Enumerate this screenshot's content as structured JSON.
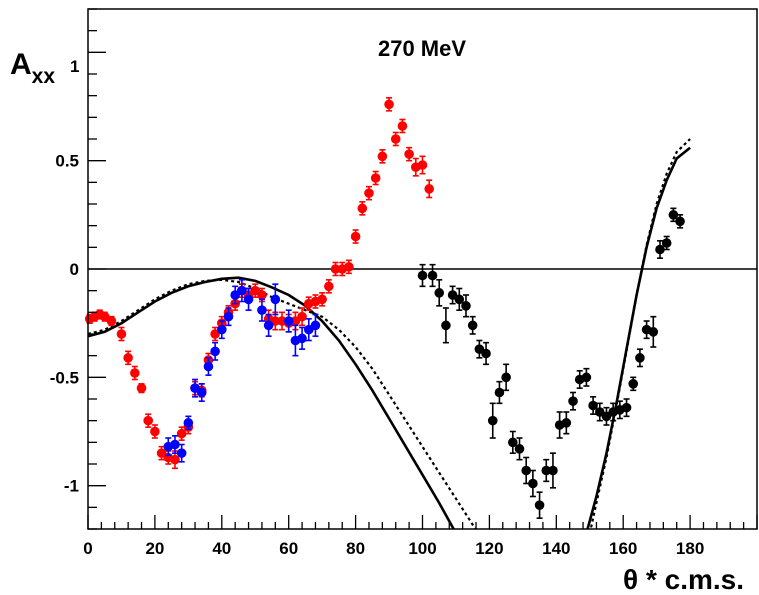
{
  "chart_data": {
    "type": "scatter",
    "title": "270 MeV",
    "xlabel": "θ * c.m.s.",
    "ylabel_main": "A",
    "ylabel_sub": "xx",
    "xlim": [
      0,
      200
    ],
    "ylim": [
      -1.2,
      1.2
    ],
    "x_ticks": [
      0,
      20,
      40,
      60,
      80,
      100,
      120,
      140,
      160,
      180
    ],
    "y_ticks": [
      -1,
      -0.5,
      0,
      0.5,
      1
    ],
    "x_tick_labels": [
      "0",
      "20",
      "40",
      "60",
      "80",
      "100",
      "120",
      "140",
      "160",
      "180"
    ],
    "y_tick_labels": [
      "-1",
      "-0.5",
      "0",
      "0.5",
      "1"
    ],
    "grid": false,
    "zero_line": 0,
    "colors": {
      "red": "#ff0000",
      "blue": "#0000ff",
      "black": "#000000"
    },
    "series": [
      {
        "color": "#ff0000",
        "points": [
          [
            0.5,
            -0.23,
            0.02
          ],
          [
            2,
            -0.22,
            0.02
          ],
          [
            3.5,
            -0.21,
            0.02
          ],
          [
            5,
            -0.22,
            0.02
          ],
          [
            7,
            -0.24,
            0.02
          ],
          [
            10,
            -0.3,
            0.03
          ],
          [
            12,
            -0.41,
            0.03
          ],
          [
            14,
            -0.48,
            0.03
          ],
          [
            16,
            -0.55,
            0.02
          ],
          [
            18,
            -0.7,
            0.03
          ],
          [
            20,
            -0.75,
            0.03
          ],
          [
            22,
            -0.85,
            0.03
          ],
          [
            24,
            -0.87,
            0.03
          ],
          [
            26,
            -0.88,
            0.04
          ],
          [
            28,
            -0.76,
            0.03
          ],
          [
            30,
            -0.73,
            0.03
          ],
          [
            32,
            -0.55,
            0.03
          ],
          [
            34,
            -0.56,
            0.03
          ],
          [
            36,
            -0.42,
            0.03
          ],
          [
            38,
            -0.3,
            0.03
          ],
          [
            40,
            -0.25,
            0.03
          ],
          [
            42,
            -0.2,
            0.03
          ],
          [
            44,
            -0.16,
            0.03
          ],
          [
            46,
            -0.1,
            0.03
          ],
          [
            48,
            -0.12,
            0.03
          ],
          [
            50,
            -0.1,
            0.03
          ],
          [
            52,
            -0.12,
            0.03
          ],
          [
            54,
            -0.23,
            0.04
          ],
          [
            56,
            -0.24,
            0.04
          ],
          [
            58,
            -0.24,
            0.04
          ],
          [
            60,
            -0.25,
            0.04
          ],
          [
            62,
            -0.24,
            0.04
          ],
          [
            64,
            -0.22,
            0.04
          ],
          [
            66,
            -0.16,
            0.03
          ],
          [
            68,
            -0.15,
            0.03
          ],
          [
            70,
            -0.14,
            0.03
          ],
          [
            72,
            -0.08,
            0.03
          ],
          [
            74,
            0.0,
            0.03
          ],
          [
            76,
            0.0,
            0.03
          ],
          [
            78,
            0.01,
            0.03
          ],
          [
            80,
            0.15,
            0.03
          ],
          [
            82,
            0.28,
            0.03
          ],
          [
            84,
            0.35,
            0.03
          ],
          [
            86,
            0.42,
            0.03
          ],
          [
            88,
            0.52,
            0.03
          ],
          [
            90,
            0.76,
            0.03
          ],
          [
            92,
            0.6,
            0.03
          ],
          [
            94,
            0.66,
            0.03
          ],
          [
            96,
            0.53,
            0.03
          ],
          [
            98,
            0.47,
            0.04
          ],
          [
            100,
            0.48,
            0.04
          ],
          [
            102,
            0.37,
            0.04
          ]
        ]
      },
      {
        "color": "#0000ff",
        "points": [
          [
            24,
            -0.82,
            0.04
          ],
          [
            26,
            -0.81,
            0.04
          ],
          [
            28,
            -0.85,
            0.04
          ],
          [
            30,
            -0.71,
            0.03
          ],
          [
            32,
            -0.55,
            0.04
          ],
          [
            34,
            -0.57,
            0.04
          ],
          [
            36,
            -0.45,
            0.04
          ],
          [
            38,
            -0.38,
            0.04
          ],
          [
            40,
            -0.28,
            0.04
          ],
          [
            42,
            -0.22,
            0.04
          ],
          [
            44,
            -0.12,
            0.04
          ],
          [
            46,
            -0.1,
            0.05
          ],
          [
            48,
            -0.14,
            0.05
          ],
          [
            52,
            -0.19,
            0.05
          ],
          [
            54,
            -0.26,
            0.05
          ],
          [
            56,
            -0.14,
            0.07
          ],
          [
            60,
            -0.24,
            0.05
          ],
          [
            62,
            -0.33,
            0.07
          ],
          [
            64,
            -0.32,
            0.05
          ],
          [
            66,
            -0.28,
            0.05
          ],
          [
            68,
            -0.26,
            0.05
          ]
        ]
      },
      {
        "color": "#000000",
        "points": [
          [
            100,
            -0.03,
            0.05
          ],
          [
            103,
            -0.03,
            0.05
          ],
          [
            105,
            -0.11,
            0.06
          ],
          [
            107,
            -0.26,
            0.08
          ],
          [
            109,
            -0.12,
            0.04
          ],
          [
            111,
            -0.14,
            0.05
          ],
          [
            113,
            -0.17,
            0.05
          ],
          [
            115,
            -0.26,
            0.04
          ],
          [
            117,
            -0.37,
            0.04
          ],
          [
            119,
            -0.39,
            0.05
          ],
          [
            121,
            -0.7,
            0.08
          ],
          [
            123,
            -0.57,
            0.05
          ],
          [
            125,
            -0.5,
            0.06
          ],
          [
            127,
            -0.8,
            0.05
          ],
          [
            129,
            -0.83,
            0.05
          ],
          [
            131,
            -0.93,
            0.06
          ],
          [
            133,
            -0.99,
            0.06
          ],
          [
            135,
            -1.09,
            0.06
          ],
          [
            137,
            -0.93,
            0.05
          ],
          [
            139,
            -0.93,
            0.08
          ],
          [
            141,
            -0.72,
            0.06
          ],
          [
            143,
            -0.71,
            0.05
          ],
          [
            145,
            -0.61,
            0.04
          ],
          [
            147,
            -0.51,
            0.04
          ],
          [
            149,
            -0.5,
            0.04
          ],
          [
            151,
            -0.63,
            0.04
          ],
          [
            153,
            -0.66,
            0.04
          ],
          [
            155,
            -0.68,
            0.04
          ],
          [
            157,
            -0.66,
            0.04
          ],
          [
            159,
            -0.65,
            0.04
          ],
          [
            161,
            -0.64,
            0.04
          ],
          [
            163,
            -0.53,
            0.03
          ],
          [
            165,
            -0.41,
            0.04
          ],
          [
            167,
            -0.28,
            0.04
          ],
          [
            169,
            -0.29,
            0.07
          ],
          [
            171,
            0.09,
            0.04
          ],
          [
            173,
            0.12,
            0.03
          ],
          [
            175,
            0.25,
            0.03
          ],
          [
            177,
            0.22,
            0.03
          ]
        ]
      }
    ],
    "curves": [
      {
        "style": "solid",
        "points": [
          [
            0,
            -0.31
          ],
          [
            5,
            -0.29
          ],
          [
            10,
            -0.25
          ],
          [
            15,
            -0.2
          ],
          [
            20,
            -0.15
          ],
          [
            25,
            -0.11
          ],
          [
            30,
            -0.08
          ],
          [
            35,
            -0.06
          ],
          [
            40,
            -0.045
          ],
          [
            45,
            -0.04
          ],
          [
            50,
            -0.055
          ],
          [
            55,
            -0.085
          ],
          [
            60,
            -0.12
          ],
          [
            65,
            -0.17
          ],
          [
            70,
            -0.24
          ],
          [
            75,
            -0.33
          ],
          [
            80,
            -0.44
          ],
          [
            85,
            -0.56
          ],
          [
            90,
            -0.69
          ],
          [
            95,
            -0.82
          ],
          [
            100,
            -0.95
          ],
          [
            105,
            -1.08
          ],
          [
            110,
            -1.22
          ],
          null,
          [
            149,
            -1.22
          ],
          [
            152,
            -1.05
          ],
          [
            155,
            -0.85
          ],
          [
            158,
            -0.62
          ],
          [
            161,
            -0.37
          ],
          [
            164,
            -0.12
          ],
          [
            167,
            0.1
          ],
          [
            170,
            0.28
          ],
          [
            173,
            0.41
          ],
          [
            176,
            0.51
          ],
          [
            180,
            0.56
          ]
        ]
      },
      {
        "style": "dotted",
        "points": [
          [
            0,
            -0.3
          ],
          [
            5,
            -0.28
          ],
          [
            10,
            -0.24
          ],
          [
            15,
            -0.19
          ],
          [
            20,
            -0.14
          ],
          [
            25,
            -0.1
          ],
          [
            30,
            -0.07
          ],
          [
            35,
            -0.055
          ],
          [
            40,
            -0.05
          ],
          [
            45,
            -0.06
          ],
          [
            50,
            -0.09
          ],
          [
            55,
            -0.13
          ],
          [
            60,
            -0.16
          ],
          [
            65,
            -0.19
          ],
          [
            70,
            -0.22
          ],
          [
            75,
            -0.28
          ],
          [
            80,
            -0.36
          ],
          [
            85,
            -0.46
          ],
          [
            90,
            -0.58
          ],
          [
            95,
            -0.7
          ],
          [
            100,
            -0.82
          ],
          [
            105,
            -0.94
          ],
          [
            110,
            -1.06
          ],
          [
            115,
            -1.18
          ],
          [
            118,
            -1.24
          ],
          null,
          [
            150,
            -1.22
          ],
          [
            152,
            -1.08
          ],
          [
            155,
            -0.87
          ],
          [
            158,
            -0.63
          ],
          [
            161,
            -0.38
          ],
          [
            164,
            -0.12
          ],
          [
            167,
            0.11
          ],
          [
            170,
            0.3
          ],
          [
            173,
            0.44
          ],
          [
            176,
            0.54
          ],
          [
            180,
            0.6
          ]
        ]
      }
    ]
  }
}
